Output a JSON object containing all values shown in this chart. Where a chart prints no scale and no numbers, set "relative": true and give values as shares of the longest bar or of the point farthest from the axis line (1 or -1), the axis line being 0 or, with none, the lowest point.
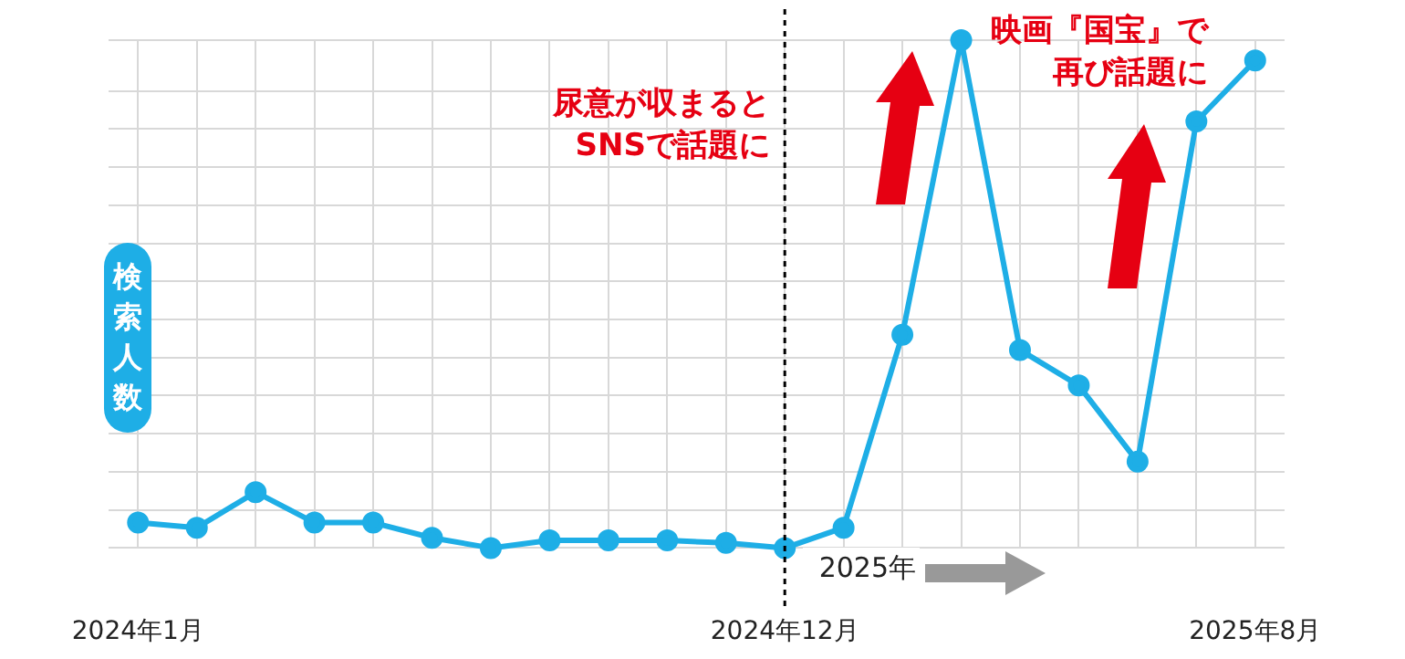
{
  "chart_data": {
    "type": "line",
    "relative": true,
    "ylabel": "検索人数",
    "categories": [
      "2024年1月",
      null,
      null,
      null,
      null,
      null,
      null,
      null,
      null,
      null,
      null,
      "2024年12月",
      null,
      null,
      null,
      null,
      null,
      null,
      null,
      "2025年8月"
    ],
    "series": [
      {
        "color": "#1eaee6",
        "values": [
          0.05,
          0.04,
          0.11,
          0.05,
          0.05,
          0.02,
          0,
          0.015,
          0.015,
          0.015,
          0.01,
          0,
          0.04,
          0.42,
          1,
          0.39,
          0.32,
          0.17,
          0.84,
          0.96
        ]
      }
    ],
    "marker": "circle",
    "grid": true,
    "legend": false,
    "ref_lines": [
      {
        "axis": "x",
        "value": "2024年12月",
        "color": "#000000",
        "line_style": "dotted"
      }
    ],
    "annotations": [
      "尿意が収まるとSNSで話題に",
      "映画『国宝』で再び話題に",
      "2025年"
    ]
  }
}
